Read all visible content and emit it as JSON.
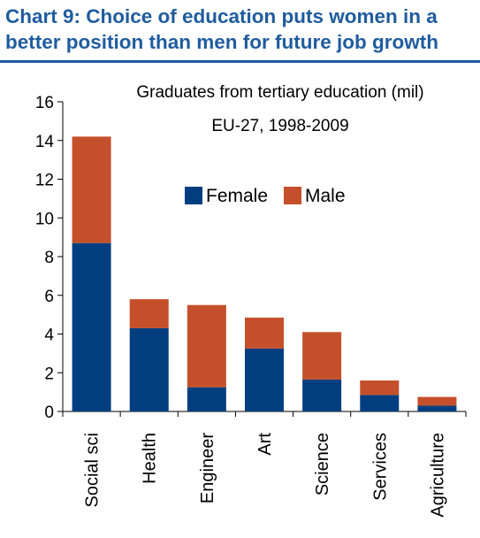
{
  "header": {
    "title": "Chart 9: Choice of education puts women in a better position than men for future job growth"
  },
  "colors": {
    "title": "#1f5c9e",
    "female": "#013e7f",
    "male": "#c4502b"
  },
  "chart_data": {
    "type": "bar",
    "stacked": true,
    "title": "Graduates from tertiary education (mil)",
    "subtitle": "EU-27, 1998-2009",
    "xlabel": "",
    "ylabel": "",
    "ylim": [
      0,
      16
    ],
    "yticks": [
      0,
      2,
      4,
      6,
      8,
      10,
      12,
      14,
      16
    ],
    "categories": [
      "Social sci",
      "Health",
      "Engineer",
      "Art",
      "Science",
      "Services",
      "Agriculture"
    ],
    "series": [
      {
        "name": "Female",
        "color": "#013e7f",
        "values": [
          8.7,
          4.3,
          1.25,
          3.25,
          1.65,
          0.85,
          0.3
        ]
      },
      {
        "name": "Male",
        "color": "#c4502b",
        "values": [
          5.5,
          1.5,
          4.25,
          1.6,
          2.45,
          0.75,
          0.45
        ]
      }
    ],
    "legend_placement": "center-top",
    "grid": false
  }
}
